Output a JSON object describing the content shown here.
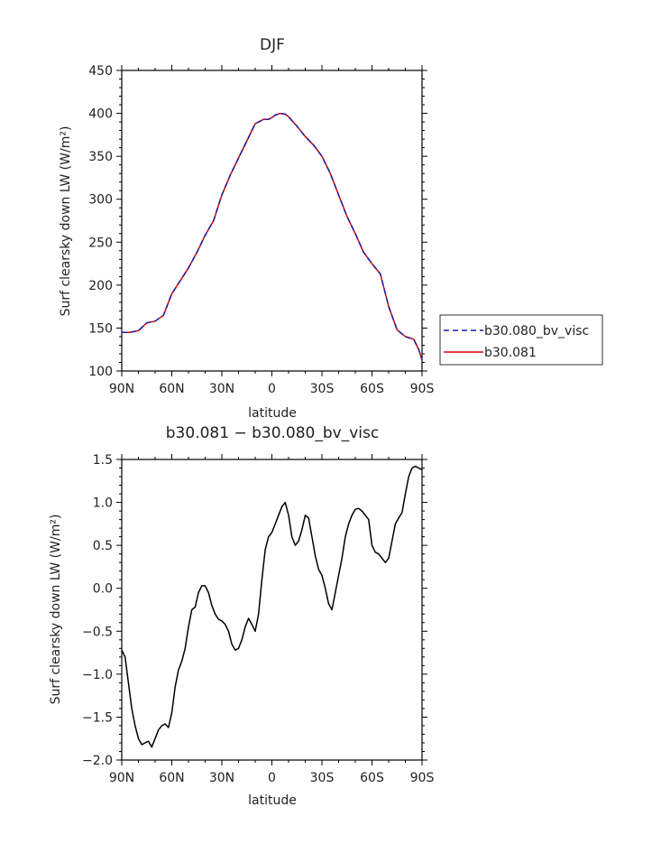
{
  "chart_data": [
    {
      "type": "line",
      "title": "DJF",
      "xlabel": "latitude",
      "ylabel": "Surf clearsky down LW (W/m²)",
      "xlim": [
        -90,
        90
      ],
      "ylim": [
        100,
        450
      ],
      "x_ticks": [
        {
          "value": -90,
          "label": "90N"
        },
        {
          "value": -60,
          "label": "60N"
        },
        {
          "value": -30,
          "label": "30N"
        },
        {
          "value": 0,
          "label": "0"
        },
        {
          "value": 30,
          "label": "30S"
        },
        {
          "value": 60,
          "label": "60S"
        },
        {
          "value": 90,
          "label": "90S"
        }
      ],
      "y_ticks": [
        100,
        150,
        200,
        250,
        300,
        350,
        400,
        450
      ],
      "y_tick_labels": [
        "100",
        "150",
        "200",
        "250",
        "300",
        "350",
        "400",
        "450"
      ],
      "legend": {
        "placement": "right"
      },
      "x": [
        -90,
        -85,
        -80,
        -75,
        -70,
        -65,
        -60,
        -55,
        -50,
        -45,
        -40,
        -35,
        -30,
        -25,
        -20,
        -15,
        -10,
        -5,
        -2,
        0,
        2,
        5,
        8,
        10,
        15,
        20,
        25,
        30,
        35,
        40,
        45,
        50,
        55,
        60,
        65,
        70,
        75,
        80,
        85,
        88,
        90
      ],
      "series": [
        {
          "name": "b30.080_bv_visc",
          "color": "#1a1aaa",
          "style": "dashed",
          "values": [
            145,
            145,
            147,
            156,
            158,
            165,
            190,
            205,
            220,
            238,
            258,
            275,
            305,
            328,
            348,
            368,
            388,
            393,
            393,
            395,
            398,
            400,
            399,
            396,
            385,
            373,
            363,
            350,
            330,
            305,
            280,
            260,
            238,
            225,
            213,
            175,
            148,
            140,
            137,
            125,
            113
          ]
        },
        {
          "name": "b30.081",
          "color": "#dd0000",
          "style": "solid",
          "values": [
            145,
            145,
            147,
            156,
            158,
            165,
            190,
            205,
            220,
            238,
            258,
            275,
            305,
            328,
            348,
            368,
            388,
            393,
            393,
            395,
            398,
            400,
            399,
            396,
            385,
            373,
            363,
            350,
            330,
            305,
            280,
            260,
            238,
            225,
            213,
            175,
            148,
            140,
            137,
            125,
            113
          ]
        }
      ]
    },
    {
      "type": "line",
      "title": "b30.081 − b30.080_bv_visc",
      "xlabel": "latitude",
      "ylabel": "Surf clearsky down LW (W/m²)",
      "xlim": [
        -90,
        90
      ],
      "ylim": [
        -2.0,
        1.5
      ],
      "x_ticks": [
        {
          "value": -90,
          "label": "90N"
        },
        {
          "value": -60,
          "label": "60N"
        },
        {
          "value": -30,
          "label": "30N"
        },
        {
          "value": 0,
          "label": "0"
        },
        {
          "value": 30,
          "label": "30S"
        },
        {
          "value": 60,
          "label": "60S"
        },
        {
          "value": 90,
          "label": "90S"
        }
      ],
      "y_ticks": [
        -2.0,
        -1.5,
        -1.0,
        -0.5,
        0.0,
        0.5,
        1.0,
        1.5
      ],
      "y_tick_labels": [
        "−2.0",
        "−1.5",
        "−1.0",
        "−0.5",
        "0.0",
        "0.5",
        "1.0",
        "1.5"
      ],
      "x": [
        -90,
        -88,
        -86,
        -84,
        -82,
        -80,
        -78,
        -76,
        -74,
        -72,
        -70,
        -68,
        -66,
        -64,
        -62,
        -60,
        -58,
        -56,
        -54,
        -52,
        -50,
        -48,
        -46,
        -44,
        -42,
        -40,
        -38,
        -36,
        -34,
        -32,
        -30,
        -28,
        -26,
        -24,
        -22,
        -20,
        -18,
        -16,
        -14,
        -12,
        -10,
        -8,
        -6,
        -4,
        -2,
        0,
        2,
        4,
        6,
        8,
        10,
        12,
        14,
        16,
        18,
        20,
        22,
        24,
        26,
        28,
        30,
        32,
        34,
        36,
        38,
        40,
        42,
        44,
        46,
        48,
        50,
        52,
        54,
        56,
        58,
        60,
        62,
        64,
        66,
        68,
        70,
        72,
        74,
        76,
        78,
        80,
        82,
        84,
        86,
        88,
        90
      ],
      "series": [
        {
          "name": "",
          "color": "#000000",
          "style": "solid",
          "values": [
            -0.72,
            -0.8,
            -1.1,
            -1.4,
            -1.6,
            -1.75,
            -1.82,
            -1.8,
            -1.78,
            -1.85,
            -1.75,
            -1.65,
            -1.6,
            -1.58,
            -1.62,
            -1.45,
            -1.15,
            -0.95,
            -0.85,
            -0.7,
            -0.45,
            -0.25,
            -0.22,
            -0.05,
            0.03,
            0.03,
            -0.05,
            -0.2,
            -0.3,
            -0.36,
            -0.38,
            -0.42,
            -0.5,
            -0.65,
            -0.72,
            -0.7,
            -0.6,
            -0.45,
            -0.35,
            -0.42,
            -0.5,
            -0.3,
            0.1,
            0.45,
            0.6,
            0.65,
            0.75,
            0.85,
            0.95,
            1.0,
            0.85,
            0.6,
            0.5,
            0.55,
            0.68,
            0.85,
            0.82,
            0.6,
            0.38,
            0.22,
            0.15,
            0.0,
            -0.18,
            -0.25,
            -0.05,
            0.15,
            0.35,
            0.6,
            0.75,
            0.85,
            0.92,
            0.93,
            0.9,
            0.85,
            0.8,
            0.5,
            0.42,
            0.4,
            0.35,
            0.3,
            0.35,
            0.55,
            0.75,
            0.82,
            0.88,
            1.1,
            1.3,
            1.4,
            1.42,
            1.4,
            1.38
          ]
        }
      ]
    }
  ]
}
